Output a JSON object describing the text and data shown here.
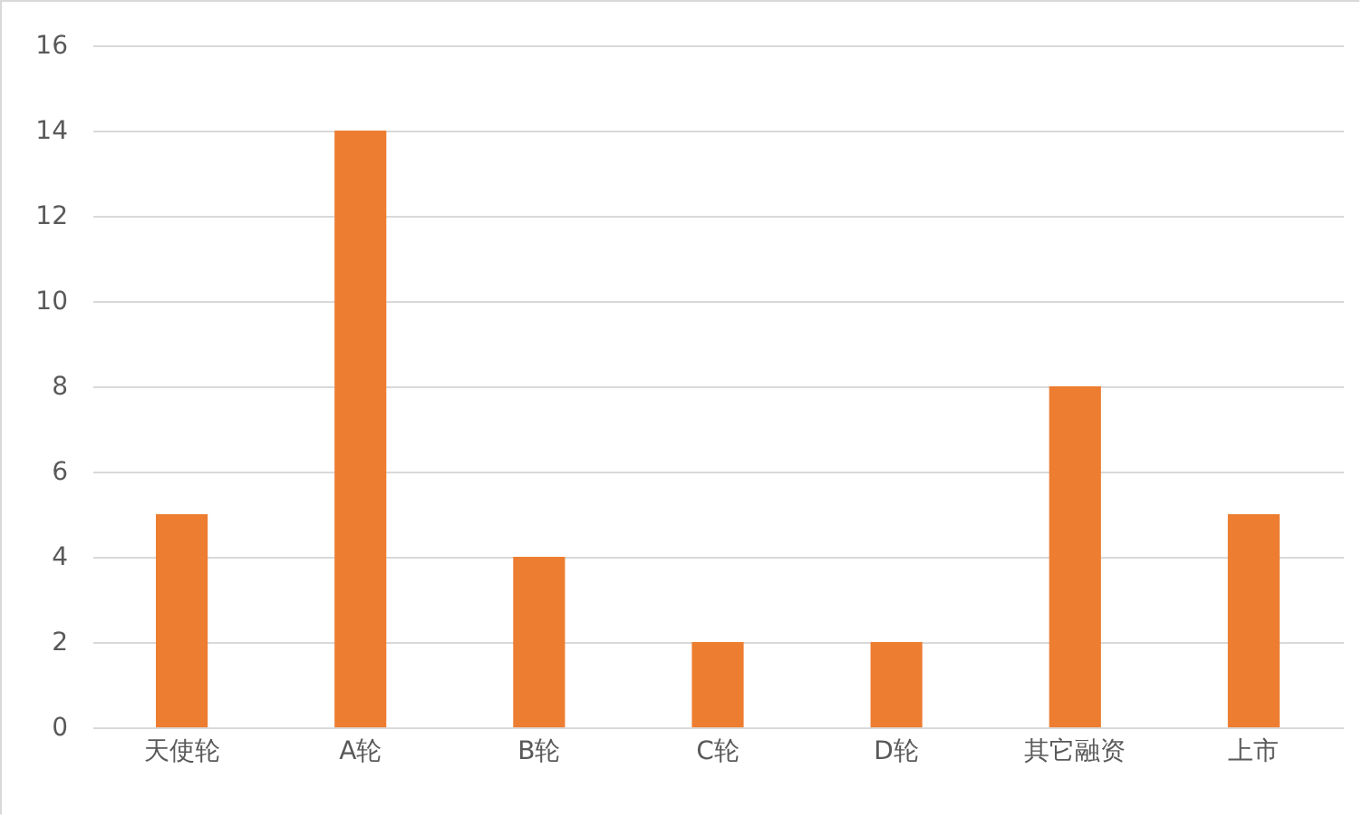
{
  "chart_data": {
    "type": "bar",
    "categories": [
      "天使轮",
      "A轮",
      "B轮",
      "C轮",
      "D轮",
      "其它融资",
      "上市"
    ],
    "values": [
      5,
      14,
      4,
      2,
      2,
      8,
      5
    ],
    "color": "#ed7d31",
    "ylim": [
      0,
      16
    ],
    "yticks": [
      0,
      2,
      4,
      6,
      8,
      10,
      12,
      14,
      16
    ],
    "grid": "y"
  }
}
